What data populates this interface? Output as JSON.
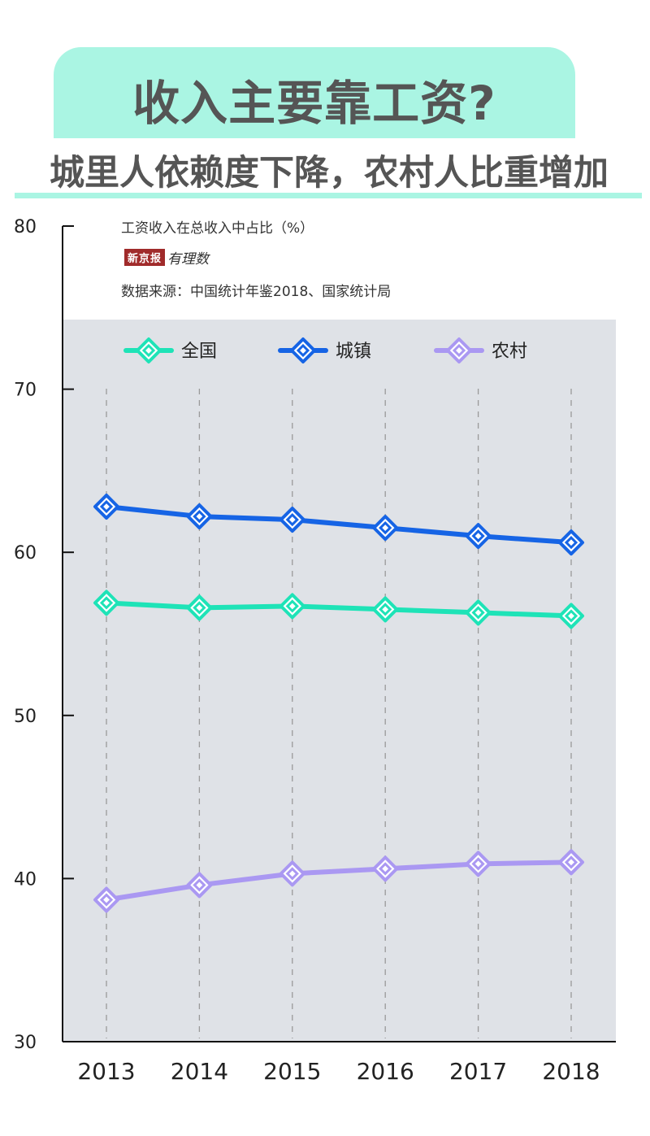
{
  "header": {
    "title": "收入主要靠工资?",
    "subtitle": "城里人依赖度下降，农村人比重增加"
  },
  "meta": {
    "unit_label": "工资收入在总收入中占比（%）",
    "logo_box_text": "新京报",
    "logo_script_text": "有理数",
    "source": "数据来源：中国统计年鉴2018、国家统计局"
  },
  "colors": {
    "accent": "#aaf5e3",
    "national": "#1ee3b7",
    "urban": "#1664e5",
    "rural": "#aa98f2"
  },
  "chart_data": {
    "type": "line",
    "title": "",
    "xlabel": "",
    "ylabel": "工资收入在总收入中占比（%）",
    "x": [
      "2013",
      "2014",
      "2015",
      "2016",
      "2017",
      "2018"
    ],
    "ylim": [
      30,
      80
    ],
    "yticks": [
      30,
      40,
      50,
      60,
      70,
      80
    ],
    "grid": "vertical dashed",
    "legend": "top",
    "series": [
      {
        "name": "全国",
        "color": "#1ee3b7",
        "values": [
          56.9,
          56.6,
          56.7,
          56.5,
          56.3,
          56.1
        ]
      },
      {
        "name": "城镇",
        "color": "#1664e5",
        "values": [
          62.8,
          62.2,
          62.0,
          61.5,
          61.0,
          60.6
        ]
      },
      {
        "name": "农村",
        "color": "#aa98f2",
        "values": [
          38.7,
          39.6,
          40.3,
          40.6,
          40.9,
          41.0
        ]
      }
    ]
  }
}
